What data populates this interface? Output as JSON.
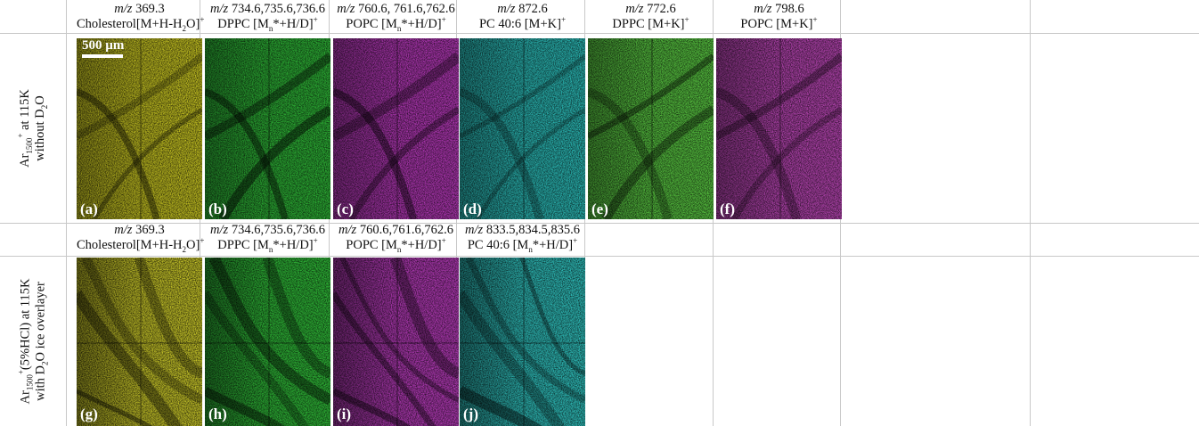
{
  "rows": [
    {
      "label_line1": "Ar1500+ at 115K",
      "label_line2": "without D2O",
      "cells": [
        {
          "mz": "m/z",
          "mz_val": "369.3",
          "name": "Cholesterol[M+H-H",
          "name_tail": "O]",
          "panel": "(a)",
          "color": "#d6d324"
        },
        {
          "mz": "m/z",
          "mz_val": "734.6,735.6,736.6",
          "name": "DPPC [M",
          "name_tail": "*+H/D]",
          "panel": "(b)",
          "color": "#31c23a"
        },
        {
          "mz": "m/z",
          "mz_val": "760.6, 761.6,762.6",
          "name": "POPC [M",
          "name_tail": "*+H/D]",
          "panel": "(c)",
          "color": "#c03cc4"
        },
        {
          "mz": "m/z",
          "mz_val": "872.6",
          "name": "PC 40:6 [M+K]",
          "name_tail": "",
          "panel": "(d)",
          "color": "#2ec8c4"
        },
        {
          "mz": "m/z",
          "mz_val": "772.6",
          "name": "DPPC [M+K]",
          "name_tail": "",
          "panel": "(e)",
          "color": "#5fd646"
        },
        {
          "mz": "m/z",
          "mz_val": "798.6",
          "name": "POPC [M+K]",
          "name_tail": "",
          "panel": "(f)",
          "color": "#c54ac0"
        }
      ]
    },
    {
      "label_line1": "Ar1500+(5%HCl) at 115K",
      "label_line2": "with D2O ice overlayer",
      "cells": [
        {
          "mz": "m/z",
          "mz_val": "369.3",
          "name": "Cholesterol[M+H-H",
          "name_tail": "O]",
          "panel": "(g)",
          "color": "#d8d62c"
        },
        {
          "mz": "m/z",
          "mz_val": "734.6,735.6,736.6",
          "name": "DPPC [M",
          "name_tail": "*+H/D]",
          "panel": "(h)",
          "color": "#33c93c"
        },
        {
          "mz": "m/z",
          "mz_val": "760.6,761.6,762.6",
          "name": "POPC [M",
          "name_tail": "*+H/D]",
          "panel": "(i)",
          "color": "#c23fc6"
        },
        {
          "mz": "m/z",
          "mz_val": "833.5,834.5,835.6",
          "name": "PC 40:6 [M",
          "name_tail": "*+H/D]",
          "panel": "(j)",
          "color": "#33cfcb"
        }
      ]
    }
  ],
  "scale_bar": {
    "label": "500 µm"
  },
  "sub_n": "n",
  "sub_2": "2",
  "sup_plus": "+",
  "sub_1500": "1500",
  "ar": "Ar"
}
